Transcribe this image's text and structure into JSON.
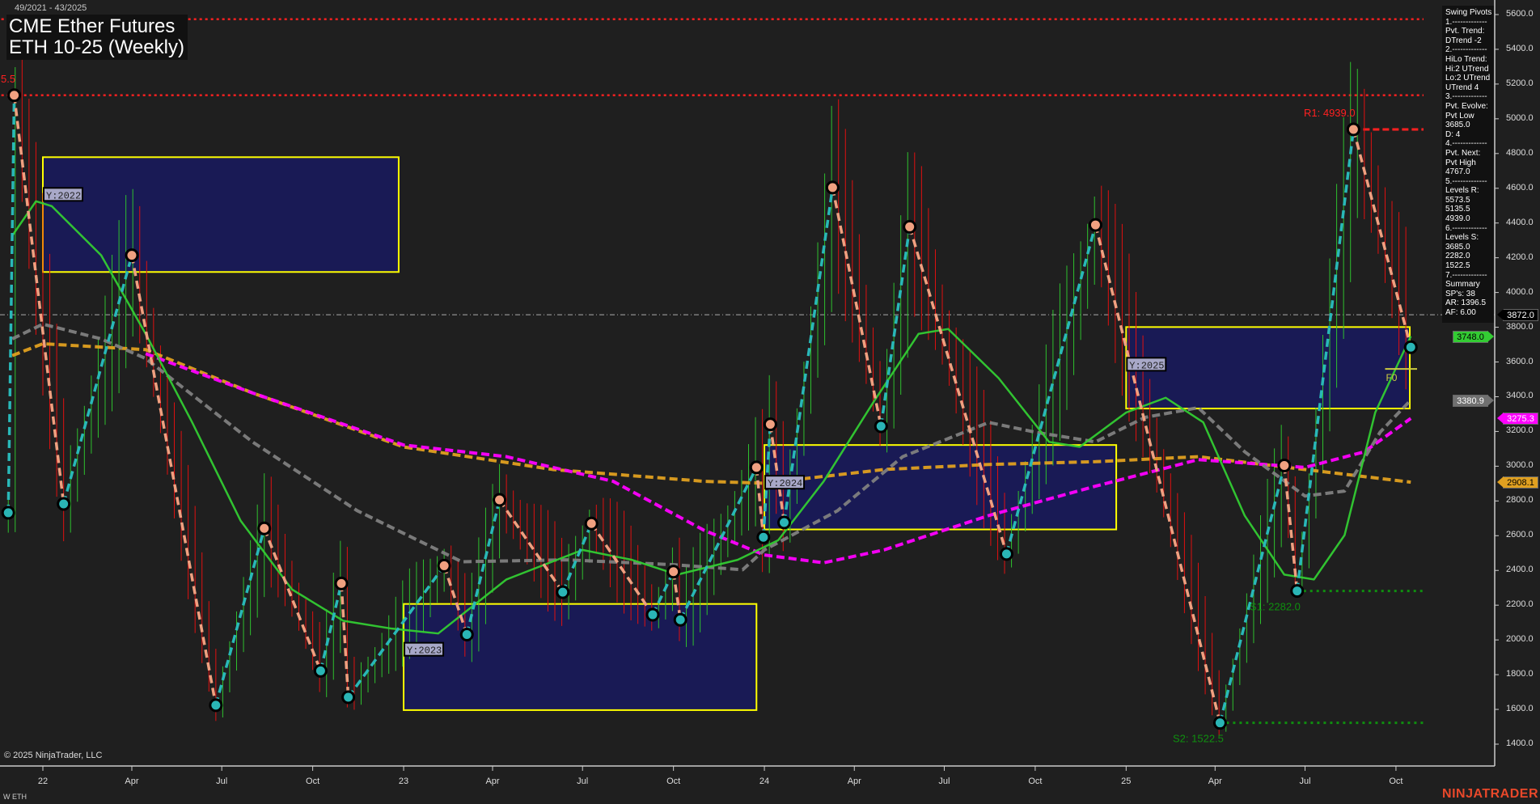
{
  "header": {
    "date_range": "49/2021 - 43/2025",
    "title_line1": "CME Ether Futures",
    "title_line2": "ETH 10-25 (Weekly)"
  },
  "info_panel": {
    "lines": [
      "Swing Pivots",
      "1.-------------",
      "Pvt. Trend:",
      "DTrend -2",
      "2.-------------",
      "HiLo Trend:",
      "Hi:2 UTrend",
      "Lo:2 UTrend",
      "UTrend 4",
      "3.-------------",
      "Pvt. Evolve:",
      "Pvt Low",
      "3685.0",
      "D: 4",
      "4.-------------",
      "Pvt. Next:",
      "Pvt High",
      "4767.0",
      "5.-------------",
      "Levels R:",
      "5573.5",
      "5135.5",
      "4939.0",
      "6.-------------",
      "Levels S:",
      "3685.0",
      "2282.0",
      "1522.5",
      "7.-------------",
      "Summary",
      "SP's: 38",
      "AR: 1396.5",
      "AF: 6.00"
    ]
  },
  "footer": {
    "copyright": "© 2025 NinjaTrader, LLC",
    "symbol": "W ETH",
    "brand": "NINJATRADER"
  },
  "chart_data": {
    "type": "line",
    "title": "CME Ether Futures ETH 10-25 (Weekly)",
    "ylim": [
      1400,
      5600
    ],
    "y_ticks": [
      "5600.0",
      "5400.0",
      "5200.0",
      "5000.0",
      "4800.0",
      "4600.0",
      "4400.0",
      "4200.0",
      "4000.0",
      "3800.0",
      "3600.0",
      "3400.0",
      "3200.0",
      "3000.0",
      "2800.0",
      "2600.0",
      "2400.0",
      "2200.0",
      "2000.0",
      "1800.0",
      "1600.0",
      "1400.0"
    ],
    "x_ticks": [
      {
        "label": "22",
        "date": "2022-01-01"
      },
      {
        "label": "Apr",
        "date": "2022-04-01"
      },
      {
        "label": "Jul",
        "date": "2022-07-01"
      },
      {
        "label": "Oct",
        "date": "2022-10-01"
      },
      {
        "label": "23",
        "date": "2023-01-01"
      },
      {
        "label": "Apr",
        "date": "2023-04-01"
      },
      {
        "label": "Jul",
        "date": "2023-07-01"
      },
      {
        "label": "Oct",
        "date": "2023-10-01"
      },
      {
        "label": "24",
        "date": "2024-01-01"
      },
      {
        "label": "Apr",
        "date": "2024-04-01"
      },
      {
        "label": "Jul",
        "date": "2024-07-01"
      },
      {
        "label": "Oct",
        "date": "2024-10-01"
      },
      {
        "label": "25",
        "date": "2025-01-01"
      },
      {
        "label": "Apr",
        "date": "2025-04-01"
      },
      {
        "label": "Jul",
        "date": "2025-07-01"
      },
      {
        "label": "Oct",
        "date": "2025-10-01"
      }
    ],
    "price_tags": [
      {
        "label": "3872.0",
        "value": 3872.0,
        "bg": "#000000",
        "fg": "#ffffff"
      },
      {
        "label": "3748.0",
        "value": 3748.0,
        "bg": "#33cc33",
        "fg": "#000000"
      },
      {
        "label": "3380.9",
        "value": 3380.9,
        "bg": "#707070",
        "fg": "#ffffff"
      },
      {
        "label": "3275.3",
        "value": 3275.3,
        "bg": "#ff00ff",
        "fg": "#ffffff"
      },
      {
        "label": "2908.1",
        "value": 2908.1,
        "bg": "#e0a020",
        "fg": "#000000"
      }
    ],
    "current_price": 3872.0,
    "swing_pivots": [
      [
        "2021-11-27",
        2732,
        "L"
      ],
      [
        "2021-12-03",
        5135.5,
        "H"
      ],
      [
        "2022-01-22",
        2783,
        "L"
      ],
      [
        "2022-04-01",
        4214,
        "H"
      ],
      [
        "2022-06-25",
        1624,
        "L"
      ],
      [
        "2022-08-13",
        2642,
        "H"
      ],
      [
        "2022-10-09",
        1822,
        "L"
      ],
      [
        "2022-10-30",
        2325,
        "H"
      ],
      [
        "2022-11-06",
        1670,
        "L"
      ],
      [
        "2023-02-11",
        2427,
        "H"
      ],
      [
        "2023-03-06",
        2031,
        "L"
      ],
      [
        "2023-04-08",
        2806,
        "H"
      ],
      [
        "2023-06-11",
        2275,
        "L"
      ],
      [
        "2023-07-10",
        2670,
        "H"
      ],
      [
        "2023-09-10",
        2145,
        "L"
      ],
      [
        "2023-10-01",
        2393,
        "H"
      ],
      [
        "2023-10-08",
        2116,
        "L"
      ],
      [
        "2023-12-24",
        2993,
        "H"
      ],
      [
        "2023-12-31",
        2591,
        "L"
      ],
      [
        "2024-01-07",
        3241,
        "H"
      ],
      [
        "2024-01-21",
        2676,
        "L"
      ],
      [
        "2024-03-10",
        4604,
        "H"
      ],
      [
        "2024-04-28",
        3230,
        "L"
      ],
      [
        "2024-05-27",
        4378,
        "H"
      ],
      [
        "2024-09-02",
        2495,
        "L"
      ],
      [
        "2024-12-01",
        4389,
        "H"
      ],
      [
        "2025-04-06",
        1522.5,
        "L"
      ],
      [
        "2025-06-10",
        3004,
        "H"
      ],
      [
        "2025-06-23",
        2282,
        "L"
      ],
      [
        "2025-08-19",
        4939,
        "H"
      ],
      [
        "2025-10-16",
        3685,
        "L"
      ]
    ],
    "moving_averages": [
      {
        "color": "#e0a020",
        "style": "dashed",
        "points": [
          [
            "2021-12-01",
            3637
          ],
          [
            "2022-01-01",
            3705
          ],
          [
            "2022-04-15",
            3671
          ],
          [
            "2022-08-01",
            3422
          ],
          [
            "2023-01-01",
            3111
          ],
          [
            "2023-06-01",
            2981
          ],
          [
            "2023-11-01",
            2913
          ],
          [
            "2024-01-01",
            2902
          ],
          [
            "2024-05-01",
            2981
          ],
          [
            "2024-08-15",
            3010
          ],
          [
            "2024-12-01",
            3026
          ],
          [
            "2025-03-15",
            3055
          ],
          [
            "2025-07-01",
            2981
          ],
          [
            "2025-10-16",
            2908.1
          ]
        ]
      },
      {
        "color": "#ff00ff",
        "style": "dashed",
        "points": [
          [
            "2022-04-15",
            3648
          ],
          [
            "2022-08-01",
            3422
          ],
          [
            "2023-01-01",
            3122
          ],
          [
            "2023-04-15",
            3055
          ],
          [
            "2023-08-01",
            2913
          ],
          [
            "2023-11-01",
            2631
          ],
          [
            "2024-01-01",
            2489
          ],
          [
            "2024-03-01",
            2444
          ],
          [
            "2024-05-01",
            2518
          ],
          [
            "2024-08-15",
            2716
          ],
          [
            "2024-12-01",
            2885
          ],
          [
            "2025-03-15",
            3038
          ],
          [
            "2025-07-01",
            2993
          ],
          [
            "2025-08-30",
            3083
          ],
          [
            "2025-10-16",
            3275.3
          ]
        ]
      },
      {
        "color": "#808080",
        "style": "dashed",
        "points": [
          [
            "2021-12-01",
            3733
          ],
          [
            "2022-01-01",
            3818
          ],
          [
            "2022-03-01",
            3733
          ],
          [
            "2022-04-15",
            3620
          ],
          [
            "2022-08-01",
            3140
          ],
          [
            "2022-11-15",
            2744
          ],
          [
            "2023-03-01",
            2450
          ],
          [
            "2023-06-15",
            2461
          ],
          [
            "2023-10-01",
            2433
          ],
          [
            "2023-12-10",
            2404
          ],
          [
            "2024-01-01",
            2518
          ],
          [
            "2024-03-15",
            2744
          ],
          [
            "2024-05-20",
            3055
          ],
          [
            "2024-08-15",
            3252
          ],
          [
            "2024-10-01",
            3196
          ],
          [
            "2024-12-01",
            3140
          ],
          [
            "2025-01-20",
            3281
          ],
          [
            "2025-03-15",
            3337
          ],
          [
            "2025-05-01",
            3083
          ],
          [
            "2025-07-01",
            2828
          ],
          [
            "2025-08-10",
            2857
          ],
          [
            "2025-09-15",
            3196
          ],
          [
            "2025-10-16",
            3380.9
          ]
        ]
      },
      {
        "color": "#33cc33",
        "style": "solid",
        "points": [
          [
            "2021-12-01",
            4327
          ],
          [
            "2021-12-25",
            4525
          ],
          [
            "2022-01-10",
            4497
          ],
          [
            "2022-03-01",
            4214
          ],
          [
            "2022-04-15",
            3762
          ],
          [
            "2022-06-01",
            3253
          ],
          [
            "2022-07-20",
            2687
          ],
          [
            "2022-09-10",
            2291
          ],
          [
            "2022-11-01",
            2110
          ],
          [
            "2022-12-20",
            2065
          ],
          [
            "2023-02-05",
            2037
          ],
          [
            "2023-04-15",
            2348
          ],
          [
            "2023-07-01",
            2518
          ],
          [
            "2023-08-20",
            2461
          ],
          [
            "2023-10-05",
            2376
          ],
          [
            "2023-12-05",
            2461
          ],
          [
            "2024-01-15",
            2574
          ],
          [
            "2024-03-01",
            2913
          ],
          [
            "2024-04-20",
            3366
          ],
          [
            "2024-06-05",
            3762
          ],
          [
            "2024-07-05",
            3790
          ],
          [
            "2024-08-25",
            3507
          ],
          [
            "2024-10-15",
            3140
          ],
          [
            "2024-11-15",
            3111
          ],
          [
            "2025-01-01",
            3309
          ],
          [
            "2025-02-10",
            3394
          ],
          [
            "2025-03-20",
            3253
          ],
          [
            "2025-05-01",
            2715
          ],
          [
            "2025-06-10",
            2376
          ],
          [
            "2025-07-10",
            2348
          ],
          [
            "2025-08-10",
            2603
          ],
          [
            "2025-09-10",
            3309
          ],
          [
            "2025-10-16",
            3748.0
          ]
        ]
      }
    ],
    "year_boxes": [
      {
        "label": "Y:2022",
        "start": "2022-01-01",
        "end": "2022-12-27",
        "high": 4779,
        "low": 4118
      },
      {
        "label": "Y:2023",
        "start": "2023-01-01",
        "end": "2023-12-24",
        "high": 2207,
        "low": 1596
      },
      {
        "label": "Y:2024",
        "start": "2024-01-01",
        "end": "2024-12-22",
        "high": 3122,
        "low": 2636
      },
      {
        "label": "Y:2025",
        "start": "2025-01-01",
        "end": "2025-10-15",
        "high": 3801,
        "low": 3332
      }
    ],
    "levels": [
      {
        "label": "",
        "value": 5573.5,
        "color": "#ff2020",
        "from": "2021-11-20"
      },
      {
        "label": "5.5",
        "value": 5135.5,
        "color": "#ff2020",
        "from": "2021-11-20"
      },
      {
        "label": "R1: 4939.0",
        "value": 4939.0,
        "color": "#ff2020",
        "from": "2025-08-19"
      },
      {
        "label": "S1: 2282.0",
        "value": 2282.0,
        "color": "#0f8f0f",
        "from": "2025-06-23"
      },
      {
        "label": "S2: 1522.5",
        "value": 1522.5,
        "color": "#0f8f0f",
        "from": "2025-04-06"
      }
    ],
    "fib_label": {
      "label": "F0",
      "value": 3560,
      "date": "2025-09-20"
    }
  }
}
